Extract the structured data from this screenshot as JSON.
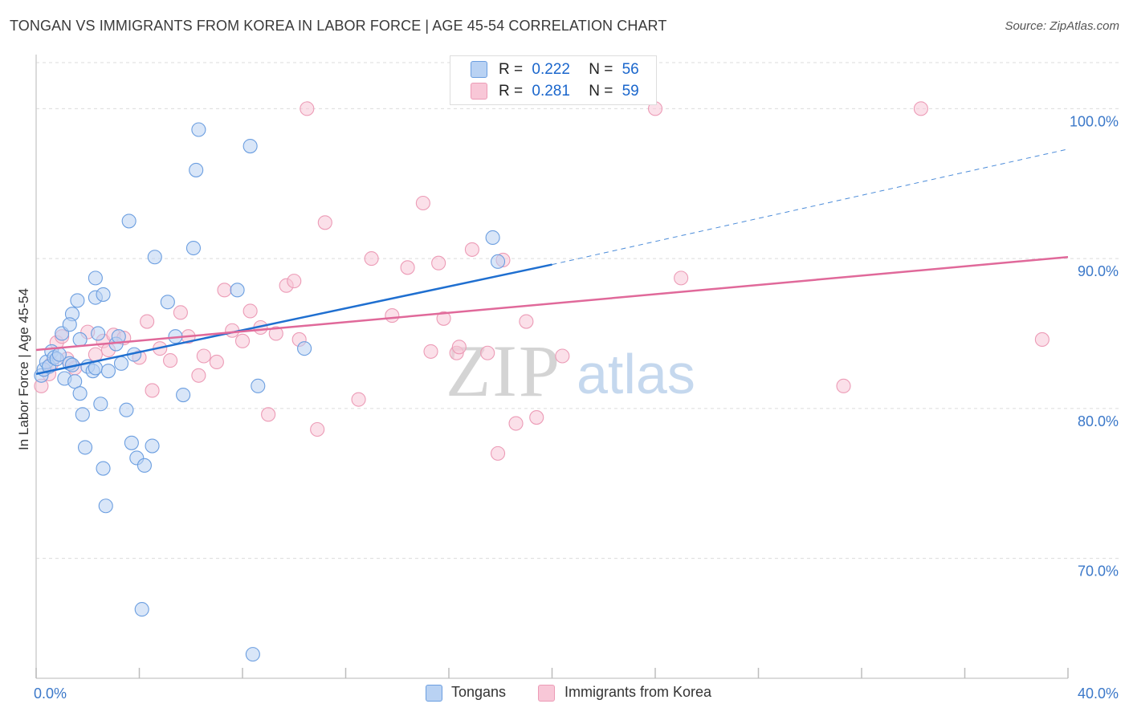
{
  "title": "TONGAN VS IMMIGRANTS FROM KOREA IN LABOR FORCE | AGE 45-54 CORRELATION CHART",
  "source": "Source: ZipAtlas.com",
  "legend_top": [
    {
      "r_label": "R =",
      "r_value": "0.222",
      "n_label": "N =",
      "n_value": "56"
    },
    {
      "r_label": "R =",
      "r_value": "0.281",
      "n_label": "N =",
      "n_value": "59"
    }
  ],
  "legend_bottom": [
    "Tongans",
    "Immigrants from Korea"
  ],
  "colors": {
    "tongans_fill": "#b9d2f3",
    "tongans_stroke": "#6b9ee0",
    "tongans_line": "#1f6fd0",
    "korea_fill": "#f8c7d7",
    "korea_stroke": "#ec9bb6",
    "korea_line": "#e0699a",
    "axis_text": "#3b78c9",
    "grid": "#dcdcdc"
  },
  "chart_data": {
    "type": "scatter",
    "title": "TONGAN VS IMMIGRANTS FROM KOREA IN LABOR FORCE | AGE 45-54 CORRELATION CHART",
    "xlabel": "",
    "ylabel": "In Labor Force | Age 45-54",
    "xlim": [
      0,
      40
    ],
    "ylim": [
      62,
      103.5
    ],
    "x_tick_labels": [
      "0.0%",
      "40.0%"
    ],
    "y_ticks": [
      70,
      80,
      90,
      100
    ],
    "y_tick_labels": [
      "70.0%",
      "80.0%",
      "90.0%",
      "100.0%"
    ],
    "watermark": [
      "ZIP",
      "atlas"
    ],
    "series": [
      {
        "name": "Tongans",
        "r": 0.222,
        "n": 56,
        "trend": {
          "x0": 0,
          "y0": 82.3,
          "x1": 20,
          "y1": 89.6,
          "dashed_to_x": 40,
          "dashed_to_y": 97.3
        },
        "points": [
          [
            0.2,
            82.2
          ],
          [
            0.3,
            82.6
          ],
          [
            0.4,
            83.1
          ],
          [
            0.5,
            82.8
          ],
          [
            0.6,
            83.8
          ],
          [
            0.7,
            83.4
          ],
          [
            0.8,
            83.3
          ],
          [
            1.0,
            85.0
          ],
          [
            1.1,
            82.0
          ],
          [
            1.3,
            83.0
          ],
          [
            1.4,
            82.9
          ],
          [
            1.5,
            81.8
          ],
          [
            1.7,
            81.0
          ],
          [
            1.8,
            79.6
          ],
          [
            1.9,
            77.4
          ],
          [
            2.0,
            82.8
          ],
          [
            2.2,
            82.5
          ],
          [
            2.3,
            82.7
          ],
          [
            2.5,
            80.3
          ],
          [
            2.6,
            76.0
          ],
          [
            2.7,
            73.5
          ],
          [
            2.8,
            82.5
          ],
          [
            3.1,
            84.3
          ],
          [
            3.3,
            83.0
          ],
          [
            3.5,
            79.9
          ],
          [
            3.7,
            77.7
          ],
          [
            3.9,
            76.7
          ],
          [
            4.2,
            76.2
          ],
          [
            4.5,
            77.5
          ],
          [
            5.4,
            84.8
          ],
          [
            2.3,
            87.4
          ],
          [
            2.6,
            87.6
          ],
          [
            2.3,
            88.7
          ],
          [
            1.6,
            87.2
          ],
          [
            1.4,
            86.3
          ],
          [
            1.3,
            85.6
          ],
          [
            3.6,
            92.5
          ],
          [
            4.6,
            90.1
          ],
          [
            5.1,
            87.1
          ],
          [
            6.1,
            90.7
          ],
          [
            6.2,
            95.9
          ],
          [
            6.3,
            98.6
          ],
          [
            7.8,
            87.9
          ],
          [
            8.3,
            97.5
          ],
          [
            8.6,
            81.5
          ],
          [
            10.4,
            84.0
          ],
          [
            17.7,
            91.4
          ],
          [
            17.9,
            89.8
          ],
          [
            4.1,
            66.6
          ],
          [
            8.4,
            63.6
          ],
          [
            3.2,
            84.8
          ],
          [
            2.4,
            85.0
          ],
          [
            5.7,
            80.9
          ],
          [
            0.9,
            83.6
          ],
          [
            1.7,
            84.6
          ],
          [
            3.8,
            83.6
          ]
        ]
      },
      {
        "name": "Immigrants from Korea",
        "r": 0.281,
        "n": 59,
        "trend": {
          "x0": 0,
          "y0": 83.9,
          "x1": 40,
          "y1": 90.1
        },
        "points": [
          [
            0.2,
            81.5
          ],
          [
            0.5,
            82.3
          ],
          [
            0.8,
            84.4
          ],
          [
            1.0,
            84.8
          ],
          [
            1.2,
            83.3
          ],
          [
            1.5,
            82.7
          ],
          [
            2.0,
            85.1
          ],
          [
            2.3,
            83.6
          ],
          [
            2.6,
            84.5
          ],
          [
            3.0,
            84.9
          ],
          [
            3.4,
            84.7
          ],
          [
            4.0,
            83.4
          ],
          [
            4.3,
            85.8
          ],
          [
            4.5,
            81.2
          ],
          [
            4.8,
            84.0
          ],
          [
            5.2,
            83.2
          ],
          [
            5.6,
            86.4
          ],
          [
            5.9,
            84.8
          ],
          [
            6.3,
            82.2
          ],
          [
            6.5,
            83.5
          ],
          [
            7.0,
            83.1
          ],
          [
            7.3,
            87.9
          ],
          [
            7.6,
            85.2
          ],
          [
            8.0,
            84.5
          ],
          [
            8.3,
            86.5
          ],
          [
            8.7,
            85.4
          ],
          [
            9.0,
            79.6
          ],
          [
            9.3,
            85.0
          ],
          [
            9.7,
            88.2
          ],
          [
            10.0,
            88.5
          ],
          [
            10.2,
            84.6
          ],
          [
            10.9,
            78.6
          ],
          [
            11.2,
            92.4
          ],
          [
            12.5,
            80.6
          ],
          [
            13.0,
            90.0
          ],
          [
            13.8,
            86.2
          ],
          [
            14.4,
            89.4
          ],
          [
            15.0,
            93.7
          ],
          [
            15.3,
            83.8
          ],
          [
            15.6,
            89.7
          ],
          [
            15.8,
            86.0
          ],
          [
            16.3,
            83.7
          ],
          [
            16.4,
            84.1
          ],
          [
            16.9,
            90.6
          ],
          [
            17.5,
            83.7
          ],
          [
            17.9,
            77.0
          ],
          [
            18.1,
            89.9
          ],
          [
            18.6,
            79.0
          ],
          [
            19.0,
            85.8
          ],
          [
            19.4,
            79.4
          ],
          [
            20.4,
            83.5
          ],
          [
            24.0,
            100.0
          ],
          [
            25.0,
            88.7
          ],
          [
            31.3,
            81.5
          ],
          [
            34.3,
            100.0
          ],
          [
            39.0,
            84.6
          ],
          [
            10.5,
            100.0
          ],
          [
            0.6,
            83.0
          ],
          [
            2.8,
            83.9
          ]
        ]
      }
    ]
  }
}
